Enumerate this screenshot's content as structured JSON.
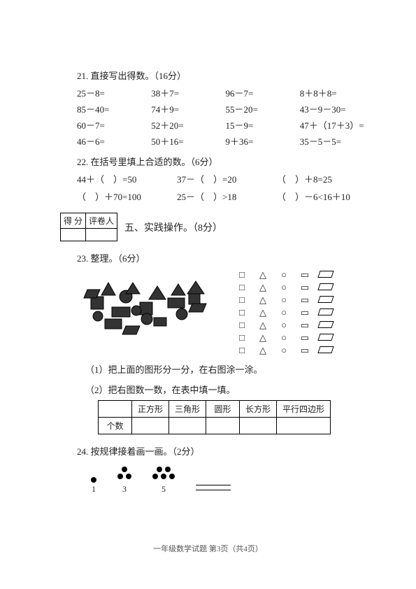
{
  "q21": {
    "title": "21. 直接写出得数。（16分）",
    "items": [
      "25－8=",
      "38＋7=",
      "96－7=",
      "8＋8＋8=",
      "85－40=",
      "74＋9=",
      "55－20=",
      "43－9－30=",
      "60－7=",
      "52＋20=",
      "15－9=",
      "47＋（17＋3）=",
      "46－6=",
      "50＋16=",
      "9＋36=",
      "35－5－5="
    ]
  },
  "q22": {
    "title": "22. 在括号里填上合适的数。（6分）",
    "items": [
      "44＋（　）=50",
      "37－（　）=20",
      "（　）＋8=25",
      "（　）＋70=100",
      "25－（　）>18",
      "（　）－6<16＋10"
    ]
  },
  "score": {
    "c1": "得 分",
    "c2": "评卷人"
  },
  "section5": "五、实践操作。（8分）",
  "q23": {
    "title": "23. 整理。（6分）",
    "sub1": "（1）把上面的图形分一分，在右图涂一涂。",
    "sub2": "（2）把右图数一数，在表中填一填。",
    "table": {
      "label": "个数",
      "headers": [
        "正方形",
        "三角形",
        "圆形",
        "长方形",
        "平行四边形"
      ]
    },
    "grid_shapes": [
      "sq",
      "tri",
      "cir",
      "rect",
      "para",
      "sq",
      "tri",
      "cir",
      "rect",
      "para",
      "sq",
      "tri",
      "cir",
      "rect",
      "para",
      "sq",
      "tri",
      "cir",
      "rect",
      "para",
      "sq",
      "tri",
      "cir",
      "rect",
      "para",
      "sq",
      "tri",
      "cir",
      "rect",
      "para",
      "sq",
      "tri",
      "cir",
      "rect",
      "para"
    ]
  },
  "q24": {
    "title": "24. 按规律接着画一画。（2分）",
    "items": [
      {
        "dots": 1,
        "label": "1"
      },
      {
        "dots": 3,
        "label": "3"
      },
      {
        "dots": 5,
        "label": "5"
      }
    ]
  },
  "footer": "一年级数学试题 第3页（共4页）",
  "colors": {
    "text": "#222222",
    "border": "#000000",
    "bg": "#ffffff"
  }
}
